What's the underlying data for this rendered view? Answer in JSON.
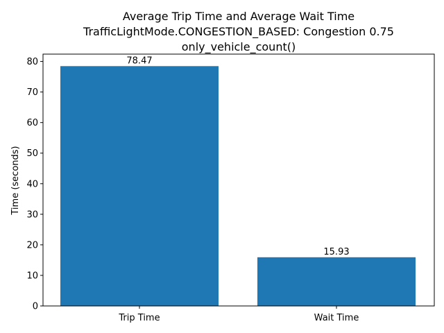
{
  "chart_data": {
    "type": "bar",
    "title_lines": [
      "Average Trip Time and Average Wait Time",
      "TrafficLightMode.CONGESTION_BASED: Congestion 0.75",
      "only_vehicle_count()"
    ],
    "xlabel": "",
    "ylabel": "Time (seconds)",
    "categories": [
      "Trip Time",
      "Wait Time"
    ],
    "values": [
      78.47,
      15.93
    ],
    "data_labels": [
      "78.47",
      "15.93"
    ],
    "ylim": [
      0,
      82.4
    ],
    "yticks": [
      0,
      10,
      20,
      30,
      40,
      50,
      60,
      70,
      80
    ],
    "bar_color": "#1f77b4",
    "grid": false,
    "legend": "none"
  }
}
